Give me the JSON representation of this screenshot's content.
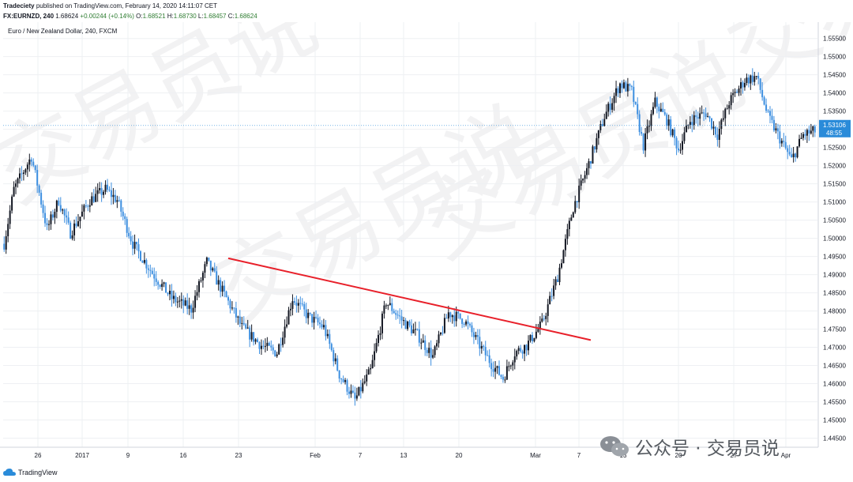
{
  "header": {
    "publisher": "Tradeciety",
    "published_text": "published on TradingView.com, February 14, 2020 14:11:07 CET",
    "symbol": "FX:EURNZD, 240",
    "last": "1.68624",
    "change": "+0.00244 (+0.14%)",
    "o_label": "O:",
    "o": "1.68521",
    "h_label": "H:",
    "h": "1.68730",
    "l_label": "L:",
    "l": "1.68457",
    "c_label": "C:",
    "c": "1.68624"
  },
  "chart_title": "Euro / New Zealand Dollar, 240, FXCM",
  "footer": {
    "brand": "TradingView"
  },
  "watermark": {
    "text": "公众号 · 交易员说",
    "bg_chars": "交易员说"
  },
  "colors": {
    "up": "#131722",
    "down": "#3d8fe0",
    "trendline": "#e8202a",
    "grid": "#eef0f3",
    "price_label": "#2a8bd9"
  },
  "chart_data": {
    "type": "candlestick",
    "y_ticks": [
      "1.55500",
      "1.55000",
      "1.54500",
      "1.54000",
      "1.53500",
      "1.53000",
      "1.52500",
      "1.52000",
      "1.51500",
      "1.51000",
      "1.50500",
      "1.50000",
      "1.49500",
      "1.49000",
      "1.48500",
      "1.48000",
      "1.47500",
      "1.47000",
      "1.46500",
      "1.46000",
      "1.45500",
      "1.45000",
      "1.44500"
    ],
    "x_ticks": [
      "26",
      "2017",
      "9",
      "16",
      "23",
      "Feb",
      "7",
      "13",
      "20",
      "Mar",
      "7",
      "13",
      "20",
      "27",
      "Apr"
    ],
    "ylim": [
      1.4425,
      1.5595
    ],
    "current_price": "1.53106",
    "countdown": "48:55",
    "anchors": [
      [
        0,
        1.4985
      ],
      [
        5,
        1.5135
      ],
      [
        14,
        1.5225
      ],
      [
        22,
        1.5025
      ],
      [
        28,
        1.5105
      ],
      [
        34,
        1.5015
      ],
      [
        44,
        1.5105
      ],
      [
        52,
        1.5135
      ],
      [
        58,
        1.5105
      ],
      [
        66,
        1.4985
      ],
      [
        76,
        1.4905
      ],
      [
        86,
        1.4835
      ],
      [
        96,
        1.4805
      ],
      [
        104,
        1.4935
      ],
      [
        112,
        1.4855
      ],
      [
        122,
        1.4755
      ],
      [
        132,
        1.4705
      ],
      [
        140,
        1.4685
      ],
      [
        148,
        1.4835
      ],
      [
        156,
        1.4785
      ],
      [
        164,
        1.4755
      ],
      [
        172,
        1.4625
      ],
      [
        180,
        1.4555
      ],
      [
        188,
        1.4635
      ],
      [
        196,
        1.4825
      ],
      [
        204,
        1.4775
      ],
      [
        212,
        1.4735
      ],
      [
        220,
        1.4675
      ],
      [
        228,
        1.4795
      ],
      [
        236,
        1.4775
      ],
      [
        244,
        1.4705
      ],
      [
        250,
        1.4655
      ],
      [
        256,
        1.4615
      ],
      [
        262,
        1.4685
      ],
      [
        268,
        1.4705
      ],
      [
        276,
        1.4765
      ],
      [
        284,
        1.4895
      ],
      [
        292,
        1.5085
      ],
      [
        300,
        1.5205
      ],
      [
        308,
        1.5335
      ],
      [
        316,
        1.5425
      ],
      [
        322,
        1.5405
      ],
      [
        328,
        1.5255
      ],
      [
        334,
        1.5375
      ],
      [
        340,
        1.5325
      ],
      [
        346,
        1.5245
      ],
      [
        352,
        1.5325
      ],
      [
        360,
        1.5345
      ],
      [
        366,
        1.5285
      ],
      [
        372,
        1.5375
      ],
      [
        380,
        1.5435
      ],
      [
        386,
        1.5445
      ],
      [
        392,
        1.5335
      ],
      [
        398,
        1.5275
      ],
      [
        404,
        1.5215
      ],
      [
        410,
        1.5285
      ],
      [
        416,
        1.5295
      ]
    ],
    "trendline": {
      "start": {
        "bar": 115,
        "price": 1.4945
      },
      "end": {
        "bar": 301,
        "price": 1.472
      }
    },
    "grid": true
  }
}
